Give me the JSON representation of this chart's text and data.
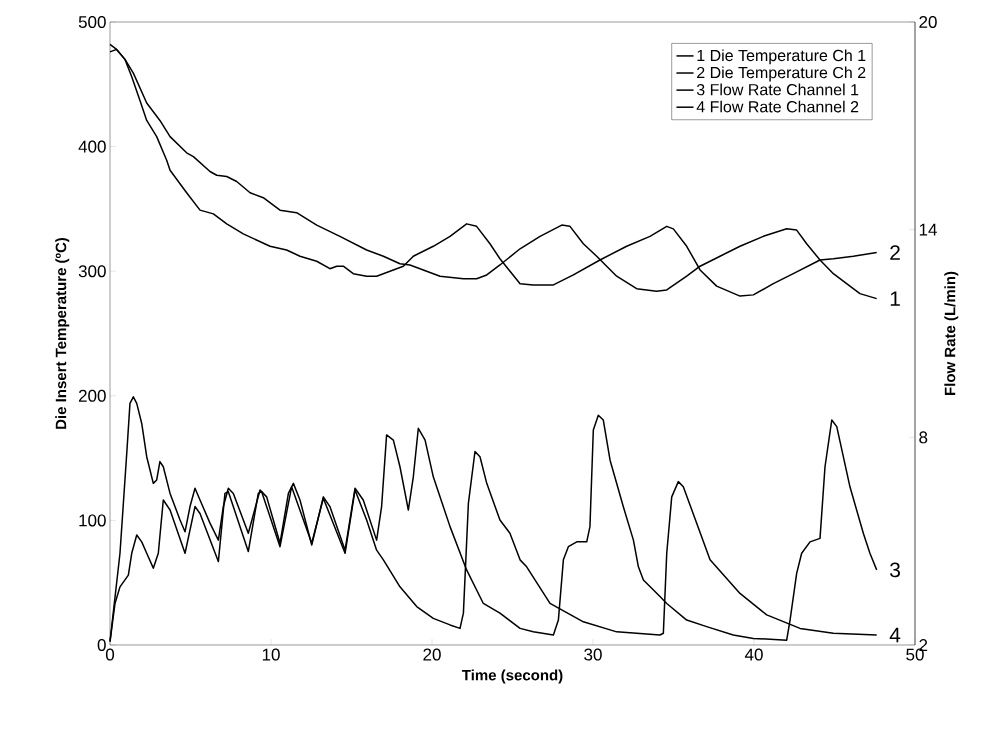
{
  "chart_data": {
    "type": "line",
    "xlabel": "Time (second)",
    "ylabel": "Die Insert Temperature (ºC)",
    "y2label": "Flow Rate (L/min)",
    "xlim": [
      0,
      50
    ],
    "xticks": [
      0,
      10,
      20,
      30,
      40,
      50
    ],
    "ylim": [
      0,
      500
    ],
    "yticks": [
      0,
      100,
      200,
      300,
      400,
      500
    ],
    "y2lim": [
      2,
      20
    ],
    "y2ticks": [
      2,
      8,
      14,
      20
    ],
    "legend": "top right",
    "series": [
      {
        "name": "1 Die Temperature Ch 1",
        "color": "#000000",
        "x": [
          0,
          0.41,
          0.93,
          1.45,
          2.28,
          3.1,
          3.73,
          4.76,
          5.18,
          6.21,
          6.63,
          7.25,
          7.87,
          8.7,
          9.52,
          10.56,
          11.59,
          12.84,
          14.28,
          15.94,
          16.98,
          18.01,
          18.63,
          19.46,
          20.5,
          21.95,
          22.77,
          23.4,
          24.22,
          25.47,
          26.71,
          28.06,
          28.57,
          29.4,
          30.23,
          31.47,
          32.71,
          33.95,
          34.58,
          35.82,
          36.65,
          37.89,
          39.13,
          40.58,
          42.03,
          42.65,
          43.27,
          44.1,
          44.93,
          45.96,
          46.58,
          47.62
        ],
        "values": [
          476,
          478,
          470,
          459,
          435,
          421,
          408,
          395,
          392,
          380,
          377,
          376,
          372,
          363,
          359,
          349,
          347,
          337,
          328,
          317,
          312,
          306,
          305,
          301,
          296,
          294,
          294,
          297,
          305,
          318,
          328,
          337,
          336,
          322,
          312,
          296,
          286,
          284,
          285,
          296,
          304,
          312,
          320,
          328,
          334,
          333,
          322,
          309,
          298,
          288,
          282,
          278
        ]
      },
      {
        "name": "2 Die Temperature Ch 2",
        "color": "#000000",
        "x": [
          0,
          0.41,
          0.93,
          1.35,
          1.86,
          2.28,
          2.9,
          3.52,
          3.73,
          4.76,
          5.59,
          6.42,
          7.25,
          8.28,
          9.11,
          9.94,
          10.97,
          11.8,
          12.84,
          13.66,
          14.08,
          14.49,
          15.11,
          15.94,
          16.56,
          17.39,
          18.22,
          18.84,
          20.08,
          21.12,
          22.15,
          22.77,
          23.6,
          24.22,
          25.47,
          26.29,
          27.54,
          28.78,
          30.43,
          32.09,
          33.54,
          34.58,
          34.99,
          35.82,
          36.65,
          37.68,
          39.13,
          39.96,
          41.2,
          42.44,
          44.1,
          44.93,
          46.17,
          47.62
        ],
        "values": [
          482,
          478,
          470,
          456,
          437,
          421,
          408,
          389,
          381,
          363,
          349,
          346,
          338,
          330,
          325,
          320,
          317,
          312,
          308,
          302,
          304,
          304,
          298,
          296,
          296,
          300,
          304,
          312,
          320,
          328,
          338,
          336,
          322,
          310,
          290,
          289,
          289,
          297,
          309,
          320,
          328,
          336,
          334,
          320,
          301,
          288,
          280,
          281,
          290,
          298,
          309,
          310,
          312,
          315
        ]
      },
      {
        "name": "3 Flow Rate Channel 1",
        "color": "#000000",
        "axis": "y2",
        "x": [
          0,
          0.62,
          1.04,
          1.24,
          1.45,
          1.66,
          1.97,
          2.28,
          2.69,
          2.9,
          3.1,
          3.31,
          3.73,
          4.35,
          4.66,
          4.97,
          5.28,
          5.59,
          6.21,
          6.73,
          7.04,
          7.35,
          7.66,
          8.59,
          9.32,
          9.73,
          10.56,
          11.08,
          11.39,
          11.8,
          12.53,
          13.25,
          13.66,
          14.6,
          15.22,
          15.73,
          16.56,
          16.87,
          17.18,
          17.6,
          18.01,
          18.53,
          18.84,
          19.15,
          19.57,
          20.08,
          21.12,
          22.15,
          23.19,
          24.22,
          25.47,
          26.29,
          27.54,
          27.85,
          28.16,
          28.47,
          28.99,
          29.61,
          29.81,
          30.02,
          30.33,
          30.64,
          31.06,
          31.88,
          32.51,
          32.82,
          33.13,
          34.16,
          34.58,
          35.82,
          37.06,
          38.71,
          39.96,
          42.03,
          42.24,
          42.65,
          42.96,
          43.48,
          44.1,
          44.41,
          44.83,
          45.14,
          45.96,
          46.79,
          47.2,
          47.62
        ],
        "values": [
          2.1,
          4.65,
          7.54,
          8.98,
          9.17,
          8.98,
          8.4,
          7.44,
          6.67,
          6.77,
          7.3,
          7.15,
          6.38,
          5.61,
          5.27,
          6.0,
          6.53,
          6.19,
          5.52,
          5.03,
          6.0,
          6.53,
          6.38,
          5.23,
          6.48,
          6.28,
          4.94,
          6.38,
          6.67,
          6.19,
          4.89,
          6.28,
          6.0,
          4.74,
          6.53,
          6.19,
          5.03,
          6.0,
          8.07,
          7.92,
          7.15,
          5.9,
          6.86,
          8.26,
          7.92,
          6.86,
          5.42,
          4.17,
          3.2,
          2.92,
          2.48,
          2.38,
          2.29,
          2.72,
          4.46,
          4.84,
          4.98,
          4.98,
          5.42,
          8.21,
          8.64,
          8.5,
          7.34,
          6.0,
          5.03,
          4.26,
          3.88,
          3.4,
          3.2,
          2.72,
          2.53,
          2.29,
          2.19,
          2.14,
          2.72,
          4.07,
          4.65,
          4.98,
          5.08,
          7.15,
          8.5,
          8.31,
          6.57,
          5.23,
          4.65,
          4.17
        ]
      },
      {
        "name": "4 Flow Rate Channel 2",
        "color": "#000000",
        "axis": "y2",
        "x": [
          0,
          0.31,
          0.62,
          1.14,
          1.35,
          1.66,
          1.97,
          2.28,
          2.69,
          3.0,
          3.31,
          3.73,
          4.66,
          5.28,
          5.59,
          6.73,
          7.14,
          7.35,
          8.59,
          9.21,
          9.42,
          10.56,
          11.28,
          12.53,
          13.25,
          14.6,
          15.22,
          15.94,
          16.56,
          16.98,
          18.01,
          19.05,
          20.08,
          21.12,
          21.74,
          21.95,
          22.26,
          22.67,
          22.98,
          23.4,
          24.22,
          24.84,
          25.47,
          25.88,
          27.33,
          29.4,
          31.47,
          34.16,
          34.37,
          34.58,
          34.89,
          35.3,
          35.61,
          36.44,
          37.27,
          39.13,
          40.79,
          42.86,
          44.93,
          47.62
        ],
        "values": [
          2.1,
          3.2,
          3.68,
          4.02,
          4.65,
          5.18,
          4.98,
          4.65,
          4.22,
          4.65,
          6.19,
          5.9,
          4.65,
          6.0,
          5.8,
          4.41,
          6.38,
          6.43,
          4.7,
          6.38,
          6.43,
          4.84,
          6.57,
          4.94,
          6.24,
          4.65,
          6.48,
          5.61,
          4.74,
          4.46,
          3.68,
          3.11,
          2.77,
          2.58,
          2.48,
          2.92,
          6.09,
          7.59,
          7.44,
          6.67,
          5.61,
          5.23,
          4.46,
          4.26,
          3.2,
          2.67,
          2.38,
          2.29,
          2.34,
          4.65,
          6.28,
          6.72,
          6.57,
          5.52,
          4.46,
          3.49,
          2.87,
          2.48,
          2.34,
          2.29
        ]
      }
    ],
    "annotations": [
      "1",
      "2",
      "3",
      "4"
    ]
  }
}
